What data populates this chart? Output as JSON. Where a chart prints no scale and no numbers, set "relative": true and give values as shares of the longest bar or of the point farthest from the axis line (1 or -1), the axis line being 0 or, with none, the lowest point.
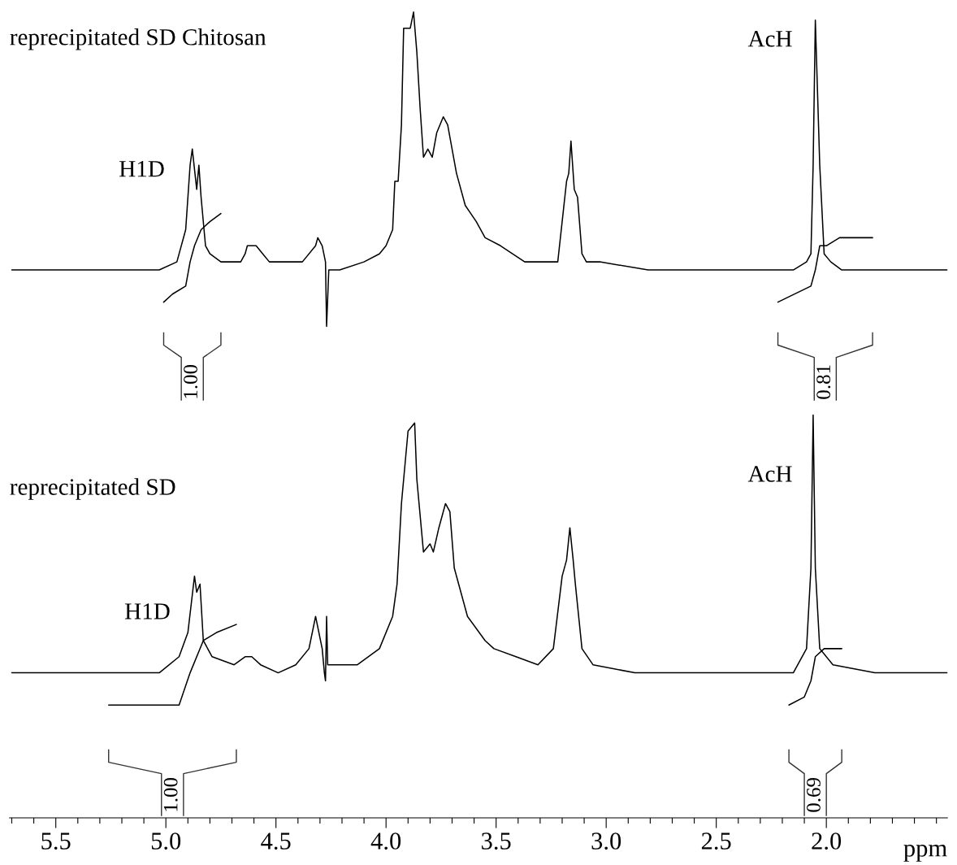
{
  "chart_data": {
    "type": "line",
    "relative": true,
    "xlim": [
      5.71,
      1.45
    ],
    "xlabel": "ppm",
    "grid": false,
    "marker": "none",
    "line_style": "solid",
    "xticks": [
      {
        "value": 5.7,
        "label": null
      },
      {
        "value": 5.6,
        "label": null
      },
      5.5,
      {
        "value": 5.4,
        "label": null
      },
      {
        "value": 5.3,
        "label": null
      },
      {
        "value": 5.2,
        "label": null
      },
      {
        "value": 5.1,
        "label": null
      },
      {
        "value": 5.0,
        "label": "5.0"
      },
      {
        "value": 4.9,
        "label": null
      },
      {
        "value": 4.8,
        "label": null
      },
      {
        "value": 4.7,
        "label": null
      },
      {
        "value": 4.6,
        "label": null
      },
      4.5,
      {
        "value": 4.4,
        "label": null
      },
      {
        "value": 4.3,
        "label": null
      },
      {
        "value": 4.2,
        "label": null
      },
      {
        "value": 4.1,
        "label": null
      },
      {
        "value": 4.0,
        "label": "4.0"
      },
      {
        "value": 3.9,
        "label": null
      },
      {
        "value": 3.8,
        "label": null
      },
      {
        "value": 3.7,
        "label": null
      },
      {
        "value": 3.6,
        "label": null
      },
      3.5,
      {
        "value": 3.4,
        "label": null
      },
      {
        "value": 3.3,
        "label": null
      },
      {
        "value": 3.2,
        "label": null
      },
      {
        "value": 3.1,
        "label": null
      },
      {
        "value": 3.0,
        "label": "3.0"
      },
      {
        "value": 2.9,
        "label": null
      },
      {
        "value": 2.8,
        "label": null
      },
      {
        "value": 2.7,
        "label": null
      },
      {
        "value": 2.6,
        "label": null
      },
      2.5,
      {
        "value": 2.4,
        "label": null
      },
      {
        "value": 2.3,
        "label": null
      },
      {
        "value": 2.2,
        "label": null
      },
      {
        "value": 2.1,
        "label": null
      },
      {
        "value": 2.0,
        "label": "2.0"
      },
      {
        "value": 1.9,
        "label": null
      },
      {
        "value": 1.8,
        "label": null
      },
      {
        "value": 1.7,
        "label": null
      },
      {
        "value": 1.6,
        "label": null
      },
      {
        "value": 1.5,
        "label": null
      }
    ],
    "series": [
      {
        "color": "#000000",
        "x": [
          5.7,
          5.21,
          5.03,
          4.95,
          4.91,
          4.89,
          4.88,
          4.86,
          4.85,
          4.84,
          4.82,
          4.8,
          4.75,
          4.66,
          4.64,
          4.63,
          4.61,
          4.6,
          4.59,
          4.56,
          4.53,
          4.45,
          4.38,
          4.32,
          4.31,
          4.29,
          4.275,
          4.27,
          4.26,
          4.21,
          4.1,
          4.03,
          4.0,
          3.97,
          3.96,
          3.945,
          3.93,
          3.92,
          3.9,
          3.89,
          3.875,
          3.86,
          3.845,
          3.83,
          3.81,
          3.79,
          3.77,
          3.74,
          3.72,
          3.68,
          3.64,
          3.59,
          3.55,
          3.48,
          3.37,
          3.27,
          3.22,
          3.2,
          3.18,
          3.17,
          3.16,
          3.145,
          3.13,
          3.11,
          3.09,
          3.03,
          2.81,
          2.44,
          2.15,
          2.09,
          2.07,
          2.06,
          2.05,
          2.03,
          2.01,
          1.98,
          1.93,
          1.7,
          1.45
        ],
        "values": [
          0.68,
          0.68,
          0.68,
          0.69,
          0.73,
          0.81,
          0.83,
          0.78,
          0.81,
          0.77,
          0.71,
          0.7,
          0.69,
          0.69,
          0.7,
          0.71,
          0.71,
          0.71,
          0.71,
          0.7,
          0.69,
          0.69,
          0.69,
          0.71,
          0.72,
          0.71,
          0.69,
          0.61,
          0.68,
          0.68,
          0.69,
          0.7,
          0.71,
          0.73,
          0.79,
          0.79,
          0.86,
          0.98,
          0.98,
          0.98,
          1,
          0.95,
          0.88,
          0.82,
          0.83,
          0.82,
          0.85,
          0.87,
          0.86,
          0.8,
          0.76,
          0.74,
          0.72,
          0.71,
          0.69,
          0.69,
          0.69,
          0.74,
          0.79,
          0.8,
          0.84,
          0.78,
          0.77,
          0.7,
          0.69,
          0.69,
          0.68,
          0.68,
          0.68,
          0.69,
          0.7,
          0.81,
          0.99,
          0.81,
          0.7,
          0.69,
          0.68,
          0.68,
          0.68
        ]
      },
      {
        "color": "#000000",
        "x": [
          5.01,
          4.97,
          4.91,
          4.89,
          4.87,
          4.84,
          4.8,
          4.75
        ],
        "values": [
          0.64,
          0.65,
          0.66,
          0.69,
          0.71,
          0.73,
          0.74,
          0.75
        ]
      },
      {
        "color": "#000000",
        "x": [
          2.22,
          2.07,
          2.05,
          2.03,
          2.0,
          1.94,
          1.79
        ],
        "values": [
          0.64,
          0.66,
          0.68,
          0.71,
          0.71,
          0.72,
          0.72
        ]
      },
      {
        "color": "#000000",
        "x": [
          5.7,
          5.2,
          5.03,
          4.94,
          4.9,
          4.87,
          4.86,
          4.845,
          4.83,
          4.79,
          4.69,
          4.64,
          4.61,
          4.57,
          4.49,
          4.41,
          4.35,
          4.32,
          4.29,
          4.28,
          4.275,
          4.27,
          4.265,
          4.21,
          4.13,
          4.03,
          3.97,
          3.95,
          3.93,
          3.9,
          3.87,
          3.86,
          3.83,
          3.8,
          3.785,
          3.76,
          3.73,
          3.71,
          3.69,
          3.63,
          3.55,
          3.51,
          3.41,
          3.31,
          3.24,
          3.2,
          3.18,
          3.165,
          3.15,
          3.14,
          3.11,
          3.06,
          2.87,
          2.46,
          2.15,
          2.09,
          2.07,
          2.06,
          2.05,
          2.03,
          1.97,
          1.78,
          1.45
        ],
        "values": [
          0.18,
          0.18,
          0.18,
          0.2,
          0.23,
          0.3,
          0.28,
          0.29,
          0.22,
          0.2,
          0.19,
          0.2,
          0.2,
          0.19,
          0.18,
          0.19,
          0.21,
          0.25,
          0.21,
          0.18,
          0.17,
          0.25,
          0.19,
          0.19,
          0.19,
          0.21,
          0.25,
          0.29,
          0.39,
          0.48,
          0.49,
          0.42,
          0.33,
          0.34,
          0.33,
          0.36,
          0.39,
          0.38,
          0.31,
          0.25,
          0.22,
          0.21,
          0.2,
          0.19,
          0.21,
          0.3,
          0.32,
          0.36,
          0.32,
          0.29,
          0.21,
          0.19,
          0.18,
          0.18,
          0.18,
          0.21,
          0.31,
          0.5,
          0.31,
          0.21,
          0.19,
          0.18,
          0.18
        ]
      },
      {
        "color": "#000000",
        "x": [
          5.26,
          5.06,
          4.94,
          4.89,
          4.83,
          4.77,
          4.68
        ],
        "values": [
          0.14,
          0.14,
          0.14,
          0.18,
          0.22,
          0.23,
          0.24
        ]
      },
      {
        "color": "#000000",
        "x": [
          2.17,
          2.1,
          2.07,
          2.05,
          2.01,
          1.93
        ],
        "values": [
          0.14,
          0.15,
          0.17,
          0.2,
          0.21,
          0.21
        ]
      }
    ],
    "annotations": [
      "reprecipitated SD Chitosan",
      "H1D",
      "AcH",
      "1.00",
      "0.81",
      "reprecipitated SD",
      "H1D",
      "AcH",
      "1.00",
      "0.69"
    ]
  }
}
